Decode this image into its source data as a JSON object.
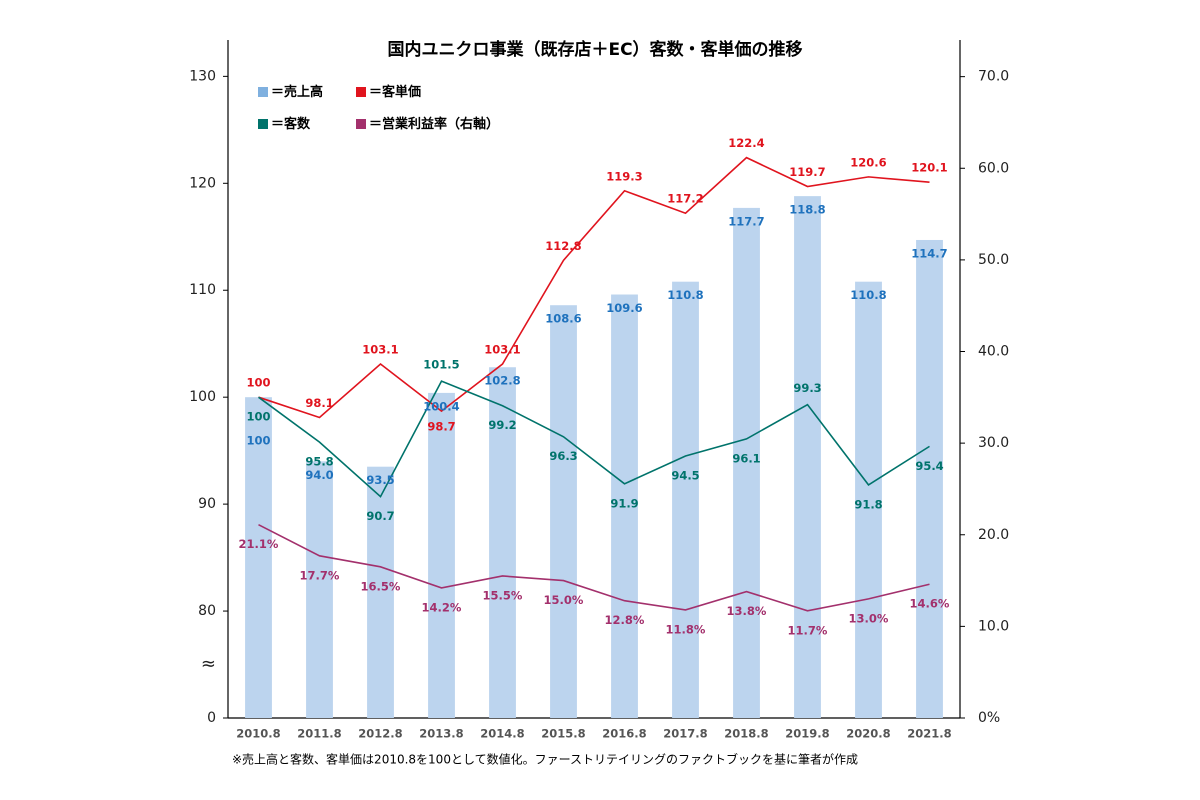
{
  "chart_data": {
    "type": "bar_line",
    "title": "国内ユニクロ事業（既存店＋EC）客数・客単価の推移",
    "footnote": "※売上高と客数、客単価は2010.8を100として数値化。ファーストリテイリングのファクトブックを基に筆者が作成",
    "categories": [
      "2010.8",
      "2011.8",
      "2012.8",
      "2013.8",
      "2014.8",
      "2015.8",
      "2016.8",
      "2017.8",
      "2018.8",
      "2019.8",
      "2020.8",
      "2021.8"
    ],
    "legend_prefix": "＝",
    "series": [
      {
        "name": "売上高",
        "kind": "bar",
        "color": "#bcd4ee",
        "label_color": "#1f72bd",
        "values": [
          100,
          94.0,
          93.5,
          100.4,
          102.8,
          108.6,
          109.6,
          110.8,
          117.7,
          118.8,
          110.8,
          114.7
        ],
        "value_labels": [
          "100",
          "94.0",
          "93.5",
          "100.4",
          "102.8",
          "108.6",
          "109.6",
          "110.8",
          "117.7",
          "118.8",
          "110.8",
          "114.7"
        ]
      },
      {
        "name": "客単価",
        "kind": "line",
        "color": "#e0141e",
        "label_color": "#e0141e",
        "values": [
          100,
          98.1,
          103.1,
          98.7,
          103.1,
          112.8,
          119.3,
          117.2,
          122.4,
          119.7,
          120.6,
          120.1
        ],
        "value_labels": [
          "100",
          "98.1",
          "103.1",
          "98.7",
          "103.1",
          "112.8",
          "119.3",
          "117.2",
          "122.4",
          "119.7",
          "120.6",
          "120.1"
        ]
      },
      {
        "name": "客数",
        "kind": "line",
        "color": "#00736b",
        "label_color": "#00736b",
        "values": [
          100,
          95.8,
          90.7,
          101.5,
          99.2,
          96.3,
          91.9,
          94.5,
          96.1,
          99.3,
          91.8,
          95.4
        ],
        "value_labels": [
          "100",
          "95.8",
          "90.7",
          "101.5",
          "99.2",
          "96.3",
          "91.9",
          "94.5",
          "96.1",
          "99.3",
          "91.8",
          "95.4"
        ]
      },
      {
        "name": "営業利益率（右軸）",
        "kind": "line",
        "axis": "y2",
        "color": "#a3306c",
        "label_color": "#a3306c",
        "values": [
          21.1,
          17.7,
          16.5,
          14.2,
          15.5,
          15.0,
          12.8,
          11.8,
          13.8,
          11.7,
          13.0,
          14.6
        ],
        "value_labels": [
          "21.1%",
          "17.7%",
          "16.5%",
          "14.2%",
          "15.5%",
          "15.0%",
          "12.8%",
          "11.8%",
          "13.8%",
          "11.7%",
          "13.0%",
          "14.6%"
        ]
      }
    ],
    "ylim": [
      0,
      133.4
    ],
    "yticks": [
      0,
      80,
      90,
      100,
      110,
      120,
      130
    ],
    "axis_break": true,
    "axis_break_symbol": "≈",
    "y2lim": [
      0,
      74
    ],
    "y2ticks": [
      {
        "value": 0,
        "label": "0%"
      },
      {
        "value": 10,
        "label": "10.0"
      },
      {
        "value": 20,
        "label": "20.0"
      },
      {
        "value": 30,
        "label": "30.0"
      },
      {
        "value": 40,
        "label": "40.0"
      },
      {
        "value": 50,
        "label": "50.0"
      },
      {
        "value": 60,
        "label": "60.0"
      },
      {
        "value": 70,
        "label": "70.0"
      }
    ]
  }
}
